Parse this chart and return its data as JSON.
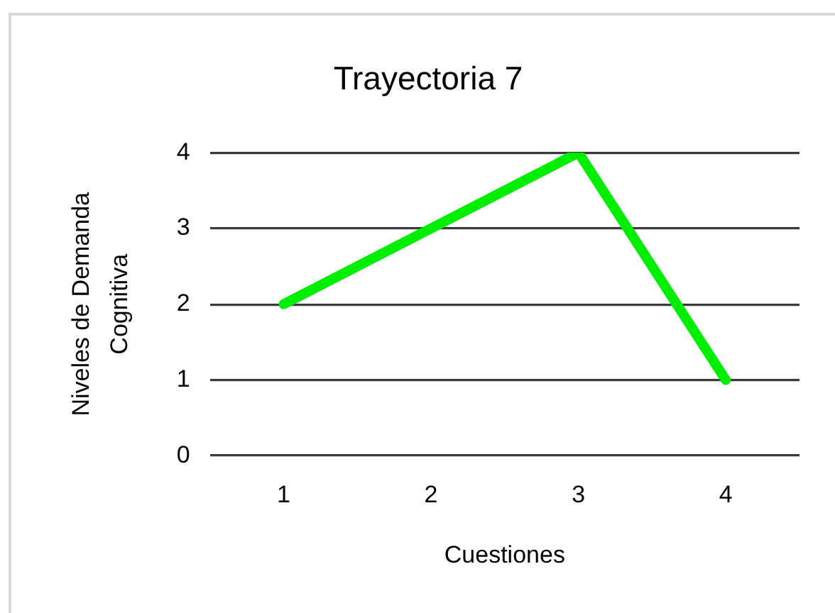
{
  "chart_data": {
    "type": "line",
    "title": "Trayectoria 7",
    "xlabel": "Cuestiones",
    "ylabel": "Niveles de Demanda Cognitiva",
    "categories": [
      "1",
      "2",
      "3",
      "4"
    ],
    "series": [
      {
        "color": "#00ee00",
        "values": [
          2,
          3,
          4,
          1
        ]
      }
    ],
    "ylim": [
      0,
      4
    ],
    "yticks": [
      0,
      1,
      2,
      3,
      4
    ],
    "grid": "y",
    "legend": false,
    "marker": "none",
    "line_style": "solid"
  }
}
